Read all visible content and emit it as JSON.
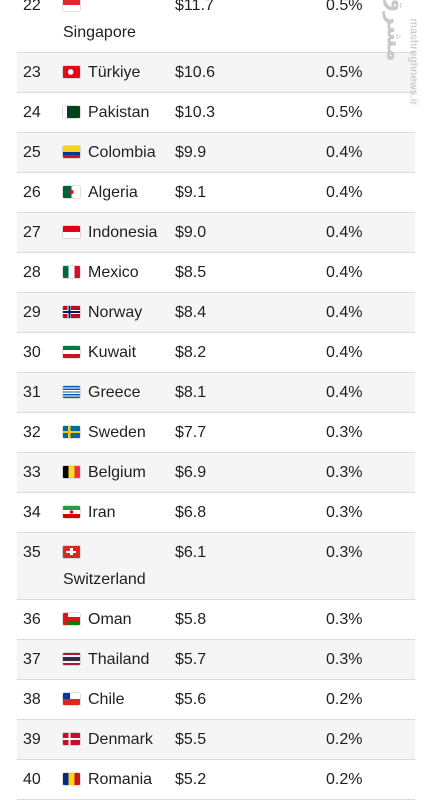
{
  "watermark": {
    "logo": "مشرق",
    "site": "mashreghnews.ir"
  },
  "rows": [
    {
      "rank": "22",
      "country": "Singapore",
      "value": "$11.7",
      "share": "0.5%",
      "flag": "sg",
      "wrap": true
    },
    {
      "rank": "23",
      "country": "Türkiye",
      "value": "$10.6",
      "share": "0.5%",
      "flag": "tr"
    },
    {
      "rank": "24",
      "country": "Pakistan",
      "value": "$10.3",
      "share": "0.5%",
      "flag": "pk"
    },
    {
      "rank": "25",
      "country": "Colombia",
      "value": "$9.9",
      "share": "0.4%",
      "flag": "co"
    },
    {
      "rank": "26",
      "country": "Algeria",
      "value": "$9.1",
      "share": "0.4%",
      "flag": "dz"
    },
    {
      "rank": "27",
      "country": "Indonesia",
      "value": "$9.0",
      "share": "0.4%",
      "flag": "id"
    },
    {
      "rank": "28",
      "country": "Mexico",
      "value": "$8.5",
      "share": "0.4%",
      "flag": "mx"
    },
    {
      "rank": "29",
      "country": "Norway",
      "value": "$8.4",
      "share": "0.4%",
      "flag": "no"
    },
    {
      "rank": "30",
      "country": "Kuwait",
      "value": "$8.2",
      "share": "0.4%",
      "flag": "kw"
    },
    {
      "rank": "31",
      "country": "Greece",
      "value": "$8.1",
      "share": "0.4%",
      "flag": "gr"
    },
    {
      "rank": "32",
      "country": "Sweden",
      "value": "$7.7",
      "share": "0.3%",
      "flag": "se"
    },
    {
      "rank": "33",
      "country": "Belgium",
      "value": "$6.9",
      "share": "0.3%",
      "flag": "be"
    },
    {
      "rank": "34",
      "country": "Iran",
      "value": "$6.8",
      "share": "0.3%",
      "flag": "ir"
    },
    {
      "rank": "35",
      "country": "Switzerland",
      "value": "$6.1",
      "share": "0.3%",
      "flag": "ch",
      "wrap": true
    },
    {
      "rank": "36",
      "country": "Oman",
      "value": "$5.8",
      "share": "0.3%",
      "flag": "om"
    },
    {
      "rank": "37",
      "country": "Thailand",
      "value": "$5.7",
      "share": "0.3%",
      "flag": "th"
    },
    {
      "rank": "38",
      "country": "Chile",
      "value": "$5.6",
      "share": "0.2%",
      "flag": "cl"
    },
    {
      "rank": "39",
      "country": "Denmark",
      "value": "$5.5",
      "share": "0.2%",
      "flag": "dk"
    },
    {
      "rank": "40",
      "country": "Romania",
      "value": "$5.2",
      "share": "0.2%",
      "flag": "ro"
    }
  ]
}
